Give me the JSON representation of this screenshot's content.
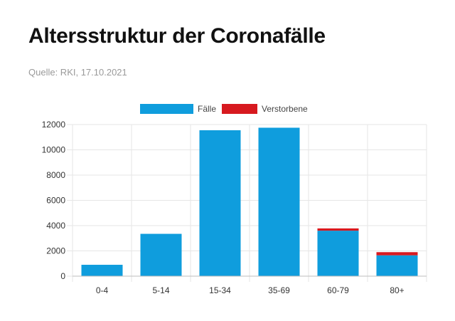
{
  "header": {
    "title": "Altersstruktur der Coronafälle",
    "source": "Quelle: RKI, 17.10.2021"
  },
  "chart_data": {
    "type": "bar",
    "stacked": true,
    "categories": [
      "0-4",
      "5-14",
      "15-34",
      "35-69",
      "60-79",
      "80+"
    ],
    "series": [
      {
        "name": "Fälle",
        "color": "#0f9ddd",
        "values": [
          900,
          3350,
          11550,
          11750,
          3600,
          1650
        ]
      },
      {
        "name": "Verstorbene",
        "color": "#d7191f",
        "values": [
          0,
          0,
          0,
          0,
          180,
          250
        ]
      }
    ],
    "ylim": [
      0,
      12000
    ],
    "yticks": [
      0,
      2000,
      4000,
      6000,
      8000,
      10000,
      12000
    ],
    "grid": true,
    "legend_position": "top-center"
  }
}
